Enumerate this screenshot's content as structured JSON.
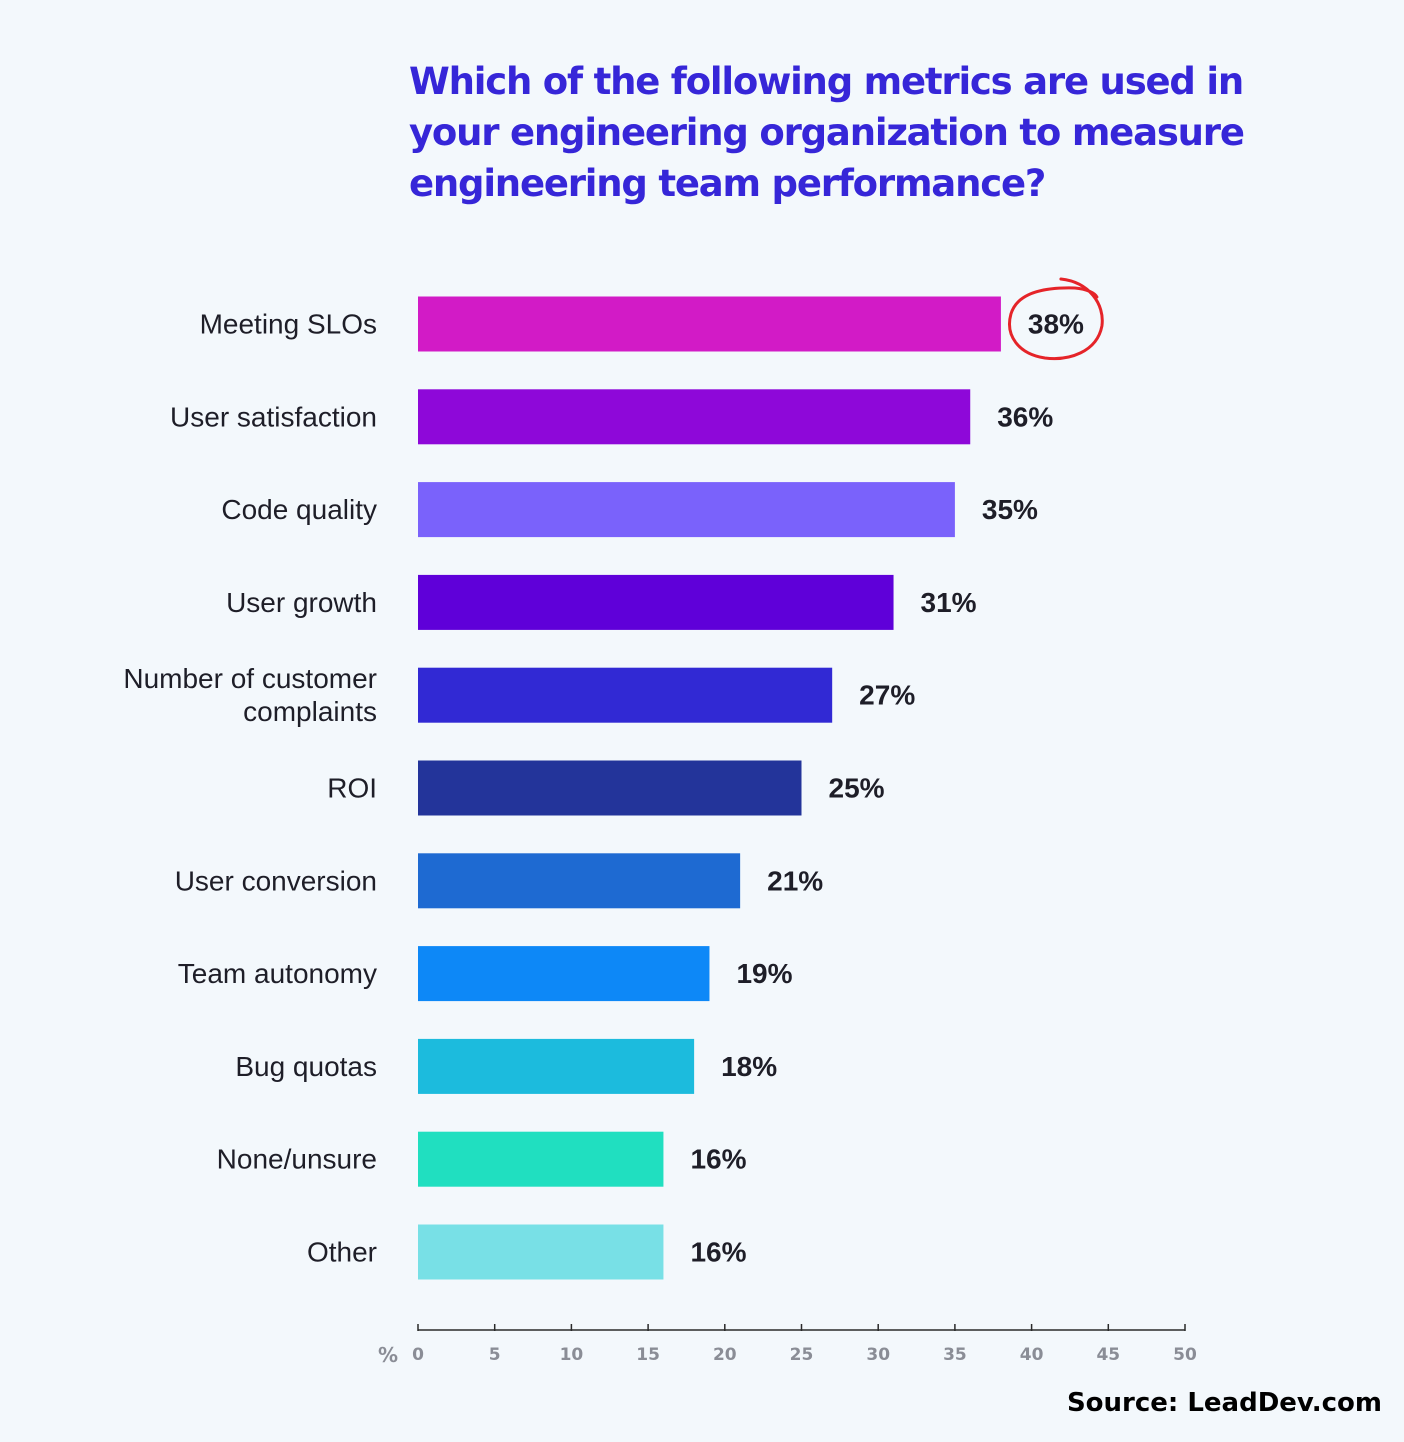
{
  "chart_data": {
    "type": "bar",
    "orientation": "horizontal",
    "title_lines": [
      "Which of the following metrics are used in",
      "your engineering organization to measure",
      "engineering team performance?"
    ],
    "categories": [
      [
        "Meeting SLOs"
      ],
      [
        "User satisfaction"
      ],
      [
        "Code quality"
      ],
      [
        "User growth"
      ],
      [
        "Number of customer",
        "complaints"
      ],
      [
        "ROI"
      ],
      [
        "User conversion"
      ],
      [
        "Team autonomy"
      ],
      [
        "Bug quotas"
      ],
      [
        "None/unsure"
      ],
      [
        "Other"
      ]
    ],
    "values": [
      38,
      36,
      35,
      31,
      27,
      25,
      21,
      19,
      18,
      16,
      16
    ],
    "value_labels": [
      "38%",
      "36%",
      "35%",
      "31%",
      "27%",
      "25%",
      "21%",
      "19%",
      "18%",
      "16%",
      "16%"
    ],
    "colors": [
      "#d21bc6",
      "#8e08d9",
      "#7a62fb",
      "#5f00d9",
      "#3129d4",
      "#23349a",
      "#1e6ad2",
      "#0d88f7",
      "#1cbbdd",
      "#20dfc0",
      "#78e0e6"
    ],
    "highlight": {
      "index": 0,
      "color": "#e52429"
    },
    "xaxis": {
      "unit_label": "%",
      "ticks": [
        0,
        5,
        10,
        15,
        20,
        25,
        30,
        35,
        40,
        45,
        50
      ],
      "xlim": [
        0,
        50
      ]
    },
    "grid": false,
    "legend": "none"
  },
  "source": "Source: LeadDev.com"
}
